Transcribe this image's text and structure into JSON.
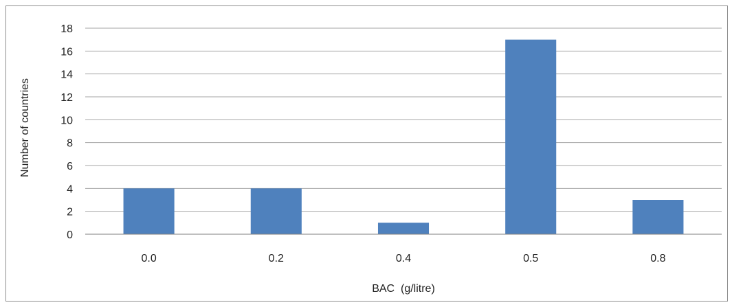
{
  "chart_data": {
    "type": "bar",
    "categories": [
      "0.0",
      "0.2",
      "0.4",
      "0.5",
      "0.8"
    ],
    "values": [
      4,
      4,
      1,
      17,
      3
    ],
    "xlabel": "BAC  (g/litre)",
    "ylabel": "Number of countries",
    "ylim": [
      0,
      18
    ],
    "yticks": [
      0,
      2,
      4,
      6,
      8,
      10,
      12,
      14,
      16,
      18
    ],
    "grid": true,
    "legend": "none",
    "bar_color": "#4f81bd"
  }
}
